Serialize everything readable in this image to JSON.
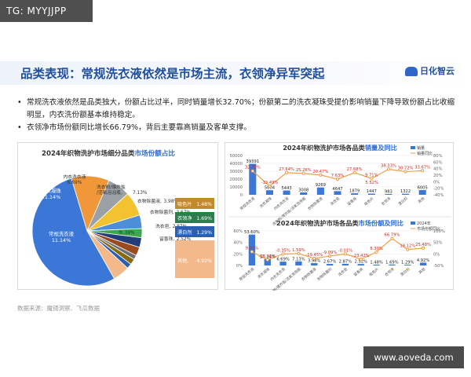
{
  "watermark_top": "TG: MYYJJPP",
  "watermark_bottom": "www.aoveda.com",
  "page_title": "品类表现：常规洗衣液依然是市场主流，衣领净异军突起",
  "logo_text": "日化智云",
  "bullets": [
    "常规洗衣液依然是品类独大，份额占比过半，同时销量增长32.70%；份额第二的洗衣凝珠受提价影响销量下降导致份额占比收缩明显，内衣洗份额基本维持稳定。",
    "衣领净市场份额同比增长66.79%，背后主要靠高销量及客单支撑。"
  ],
  "source": "数据来源：魔镜洞察、飞瓜数据",
  "colors": {
    "blue": "#3a77d6",
    "orange": "#f0973a",
    "title": "#1f4f9e",
    "green": "#3ea84c"
  },
  "chart_data": [
    {
      "type": "pie",
      "title_prefix": "2024年织物洗护市场细分品类",
      "title_highlight": "市场份额占比",
      "slices": [
        {
          "label": "常规洗衣液",
          "value": 53.6,
          "display": "53.60%",
          "color": "#3a77d6"
        },
        {
          "label": "洗衣凝珠",
          "value": 11.14,
          "display": "11.14%",
          "color": "#f0973a"
        },
        {
          "label": "内衣洗衣液",
          "value": 6.69,
          "display": "6.69%",
          "color": "#9aa0a6"
        },
        {
          "label": "洗衣粉/爆炸盐/活氧泡泡瓶",
          "value": 7.13,
          "display": "7.13%",
          "color": "#f2c230"
        },
        {
          "label": "衣物除菌液",
          "value": 3.98,
          "display": "3.98%",
          "color": "#4c8fd8"
        },
        {
          "label": "衣物除菌剂",
          "value": 2.67,
          "display": "2.67%",
          "color": "#3ea84c"
        },
        {
          "label": "洗衣皂",
          "value": 2.87,
          "display": "2.87%",
          "color": "#223d7a"
        },
        {
          "label": "留香珠",
          "value": 2.52,
          "display": "2.52%",
          "color": "#9b4a1e"
        },
        {
          "label": "漂白剂",
          "value": 1.29,
          "display": "1.29%",
          "color": "#6a6f75"
        },
        {
          "label": "衣领净",
          "value": 1.69,
          "display": "1.69%",
          "color": "#8a6a10"
        },
        {
          "label": "吸色片",
          "value": 1.48,
          "display": "1.48%",
          "color": "#2d5fb0"
        },
        {
          "label": "其他",
          "value": 4.92,
          "display": "4.92%",
          "color": "#f3b98a"
        }
      ],
      "boxes": [
        {
          "label": "吸色片",
          "value": "1.48%",
          "color": "#c3892a"
        },
        {
          "label": "衣领净",
          "value": "1.69%",
          "color": "#2e7d4f"
        },
        {
          "label": "漂白剂",
          "value": "1.29%",
          "color": "#2d5fb0"
        },
        {
          "label": "其他",
          "value": "4.92%",
          "color": "#f3b98a"
        }
      ],
      "legend_names": [
        "常规洗衣液",
        "洗衣凝珠",
        "内衣洗衣液",
        "洗衣粉/爆炸盐/活氧泡泡瓶",
        "衣物除菌液",
        "衣物除菌剂",
        "洗衣皂",
        "留香珠"
      ],
      "legend_values": [
        "53.60%",
        "11.14%",
        "6.69%",
        "7.13%",
        "3.98%",
        "2.67%",
        "2.87%",
        "2.52%"
      ]
    },
    {
      "type": "bar",
      "title_prefix": "2024年织物洗护市场各品类",
      "title_highlight": "销量及同比",
      "categories": [
        "常规洗衣液",
        "洗衣凝珠",
        "内衣洗衣液",
        "洗衣粉/爆炸盐/活氧泡泡瓶",
        "衣物除菌液",
        "洗衣皂",
        "留香珠",
        "吸色片",
        "衣领净",
        "漂白剂",
        "其他"
      ],
      "series": [
        {
          "name": "销量",
          "values": [
            39391,
            5804,
            5443,
            3008,
            9269,
            4647,
            1879,
            1447,
            983,
            1322,
            6005
          ]
        },
        {
          "name": "销量同比",
          "values": [
            32.7,
            -13.49,
            27.64,
            25.26,
            20.47,
            7.63,
            27.68,
            9.71,
            38.33,
            30.72,
            33.67
          ],
          "display": [
            "32.70%",
            "-13.49%",
            "27.64%",
            "25.26%",
            "20.47%",
            "7.63%",
            "27.68%",
            "9.71%",
            "38.33%",
            "30.72%",
            "33.67%"
          ],
          "extra_label": "5.52%"
        }
      ],
      "ylim_left": [
        0,
        50000
      ],
      "ylim_right": [
        -40,
        80
      ],
      "left_ticks": [
        "50000",
        "40000",
        "30000",
        "20000",
        "10000",
        "0"
      ],
      "right_ticks": [
        "80%",
        "60%",
        "40%",
        "20%",
        "0%",
        "-20%",
        "-40%"
      ],
      "legend": [
        "销量",
        "销量同比"
      ]
    },
    {
      "type": "bar",
      "title_prefix": "2024年织物洗护市场各品类",
      "title_highlight": "市场份额及同比",
      "categories": [
        "常规洗衣液",
        "洗衣凝珠",
        "内衣洗衣液",
        "洗衣粉/爆炸盐/活氧泡泡瓶",
        "衣物除菌液",
        "衣物除菌剂",
        "洗衣皂",
        "留香珠",
        "吸色片",
        "衣领净",
        "漂白剂",
        "其他"
      ],
      "series": [
        {
          "name": "2024年",
          "values": [
            53.6,
            11.14,
            6.69,
            7.13,
            3.98,
            2.67,
            2.87,
            2.52,
            1.48,
            1.69,
            1.29,
            4.92
          ],
          "display": [
            "53.60%",
            "11.14%",
            "6.69%",
            "7.13%",
            "3.98%",
            "2.67%",
            "2.87%",
            "2.52%",
            "1.48%",
            "1.69%",
            "1.29%",
            "4.92%"
          ]
        },
        {
          "name": "市场份额同比",
          "values": [
            9.45,
            -25.41,
            -0.35,
            1.59,
            -19.45,
            -9.09,
            -0.01,
            -23.42,
            8.3,
            66.79,
            19.12,
            25.48
          ],
          "display": [
            "9.45%",
            "-25.41%",
            "-0.35%",
            "1.59%",
            "-19.45%",
            "-9.09%",
            "-0.01%",
            "-23.42%",
            "8.30%",
            "66.79%",
            "19.12%",
            "25.48%"
          ]
        }
      ],
      "ylim_left": [
        0,
        60
      ],
      "ylim_right": [
        -50,
        100
      ],
      "left_ticks": [
        "60%",
        "40%",
        "20%",
        "0%"
      ],
      "right_ticks": [
        "100%",
        "50%",
        "0%",
        "-50%"
      ],
      "legend": [
        "2024年",
        "市场份额同比"
      ]
    }
  ]
}
